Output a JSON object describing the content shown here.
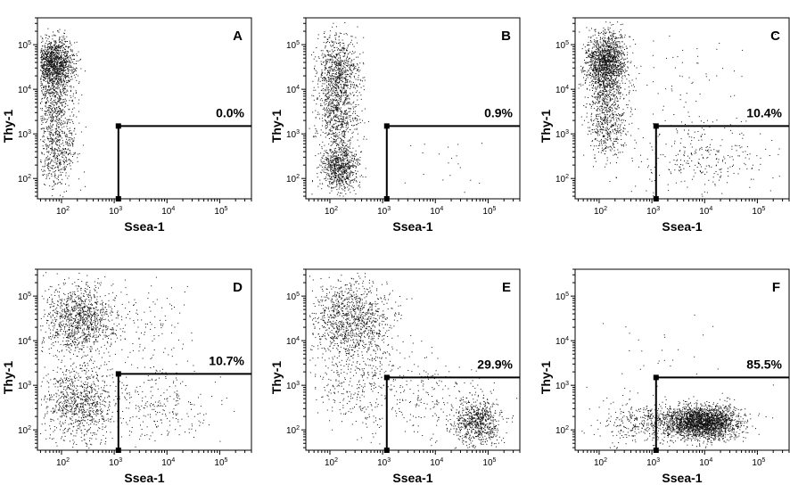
{
  "chart_data": [
    {
      "type": "scatter",
      "panel": "A",
      "xlabel": "Ssea-1",
      "ylabel": "Thy-1",
      "xscale": "log",
      "yscale": "log",
      "xlim": [
        35,
        400000
      ],
      "ylim": [
        35,
        400000
      ],
      "gate": {
        "x": 1200,
        "y": 1500,
        "percent": "0.0%"
      },
      "populations": [
        {
          "cx": 70,
          "cy": 40000,
          "sx": 0.2,
          "sy": 0.28,
          "n": 1300
        },
        {
          "cx": 75,
          "cy": 6000,
          "sx": 0.18,
          "sy": 0.45,
          "n": 550
        },
        {
          "cx": 80,
          "cy": 400,
          "sx": 0.18,
          "sy": 0.4,
          "n": 500
        }
      ]
    },
    {
      "type": "scatter",
      "panel": "B",
      "xlabel": "Ssea-1",
      "ylabel": "Thy-1",
      "xscale": "log",
      "yscale": "log",
      "xlim": [
        35,
        400000
      ],
      "ylim": [
        35,
        400000
      ],
      "gate": {
        "x": 1200,
        "y": 1500,
        "percent": "0.9%"
      },
      "populations": [
        {
          "cx": 140,
          "cy": 20000,
          "sx": 0.2,
          "sy": 0.45,
          "n": 900
        },
        {
          "cx": 140,
          "cy": 2000,
          "sx": 0.2,
          "sy": 0.35,
          "n": 450
        },
        {
          "cx": 150,
          "cy": 180,
          "sx": 0.18,
          "sy": 0.28,
          "n": 800
        },
        {
          "cx": 20000,
          "cy": 200,
          "sx": 0.5,
          "sy": 0.35,
          "n": 20
        }
      ]
    },
    {
      "type": "scatter",
      "panel": "C",
      "xlabel": "Ssea-1",
      "ylabel": "Thy-1",
      "xscale": "log",
      "yscale": "log",
      "xlim": [
        35,
        400000
      ],
      "ylim": [
        35,
        400000
      ],
      "gate": {
        "x": 1200,
        "y": 1500,
        "percent": "10.4%"
      },
      "populations": [
        {
          "cx": 130,
          "cy": 40000,
          "sx": 0.2,
          "sy": 0.35,
          "n": 1500
        },
        {
          "cx": 140,
          "cy": 2500,
          "sx": 0.18,
          "sy": 0.5,
          "n": 650
        },
        {
          "cx": 8000,
          "cy": 300,
          "sx": 0.6,
          "sy": 0.4,
          "n": 280
        },
        {
          "cx": 3000,
          "cy": 10000,
          "sx": 0.6,
          "sy": 0.7,
          "n": 80
        }
      ]
    },
    {
      "type": "scatter",
      "panel": "D",
      "xlabel": "Ssea-1",
      "ylabel": "Thy-1",
      "xscale": "log",
      "yscale": "log",
      "xlim": [
        35,
        400000
      ],
      "ylim": [
        35,
        400000
      ],
      "gate": {
        "x": 1200,
        "y": 1800,
        "percent": "10.7%"
      },
      "populations": [
        {
          "cx": 220,
          "cy": 30000,
          "sx": 0.35,
          "sy": 0.4,
          "n": 1100
        },
        {
          "cx": 200,
          "cy": 400,
          "sx": 0.35,
          "sy": 0.45,
          "n": 900
        },
        {
          "cx": 6000,
          "cy": 300,
          "sx": 0.55,
          "sy": 0.45,
          "n": 260
        },
        {
          "cx": 3000,
          "cy": 20000,
          "sx": 0.6,
          "sy": 0.6,
          "n": 160
        }
      ]
    },
    {
      "type": "scatter",
      "panel": "E",
      "xlabel": "Ssea-1",
      "ylabel": "Thy-1",
      "xscale": "log",
      "yscale": "log",
      "xlim": [
        35,
        400000
      ],
      "ylim": [
        35,
        400000
      ],
      "gate": {
        "x": 1200,
        "y": 1500,
        "percent": "29.9%"
      },
      "populations": [
        {
          "cx": 250,
          "cy": 30000,
          "sx": 0.4,
          "sy": 0.45,
          "n": 1100
        },
        {
          "cx": 400,
          "cy": 1000,
          "sx": 0.45,
          "sy": 0.55,
          "n": 380
        },
        {
          "cx": 60000,
          "cy": 150,
          "sx": 0.22,
          "sy": 0.25,
          "n": 700
        },
        {
          "cx": 12000,
          "cy": 500,
          "sx": 0.5,
          "sy": 0.45,
          "n": 200
        }
      ]
    },
    {
      "type": "scatter",
      "panel": "F",
      "xlabel": "Ssea-1",
      "ylabel": "Thy-1",
      "xscale": "log",
      "yscale": "log",
      "xlim": [
        35,
        400000
      ],
      "ylim": [
        35,
        400000
      ],
      "gate": {
        "x": 1200,
        "y": 1500,
        "percent": "85.5%"
      },
      "populations": [
        {
          "cx": 9000,
          "cy": 150,
          "sx": 0.35,
          "sy": 0.18,
          "n": 2400
        },
        {
          "cx": 800,
          "cy": 150,
          "sx": 0.45,
          "sy": 0.25,
          "n": 400
        },
        {
          "cx": 1500,
          "cy": 3000,
          "sx": 0.8,
          "sy": 0.9,
          "n": 40
        }
      ]
    }
  ]
}
